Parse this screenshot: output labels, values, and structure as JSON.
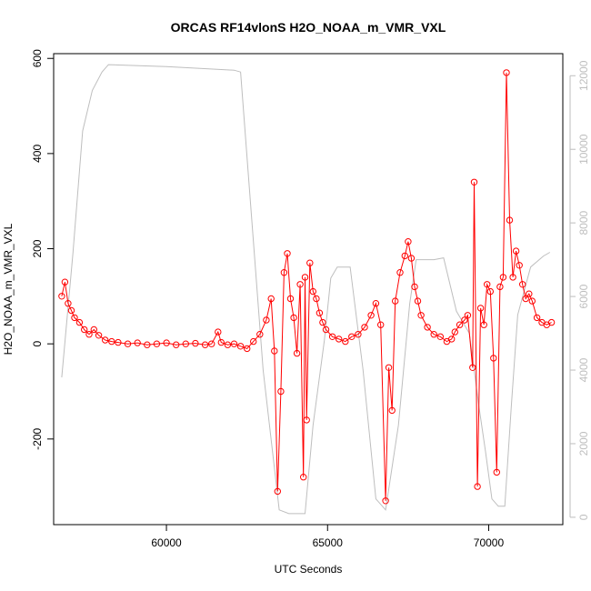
{
  "chart_data": {
    "type": "line",
    "title": "ORCAS RF14vlonS H2O_NOAA_m_VMR_VXL",
    "xlabel": "UTC Seconds",
    "ylabel": "H2O_NOAA_m_VMR_VXL",
    "xlim": [
      56500,
      72300
    ],
    "ylim": [
      -380,
      610
    ],
    "y2lim": [
      -200,
      12600
    ],
    "x_ticks": [
      60000,
      65000,
      70000
    ],
    "y_ticks": [
      -200,
      0,
      200,
      400,
      600
    ],
    "y2_ticks": [
      0,
      2000,
      4000,
      6000,
      8000,
      10000,
      12000
    ],
    "colors": {
      "primary": "#ff0000",
      "secondary": "#bebebe",
      "axis": "#000000"
    },
    "grid": false,
    "series": [
      {
        "axis": "left",
        "style": "line+open-circles",
        "color": "#ff0000",
        "points": [
          [
            56750,
            100
          ],
          [
            56850,
            130
          ],
          [
            56950,
            85
          ],
          [
            57050,
            70
          ],
          [
            57150,
            55
          ],
          [
            57300,
            45
          ],
          [
            57450,
            30
          ],
          [
            57600,
            20
          ],
          [
            57750,
            30
          ],
          [
            57900,
            18
          ],
          [
            58100,
            8
          ],
          [
            58300,
            5
          ],
          [
            58500,
            3
          ],
          [
            58800,
            0
          ],
          [
            59100,
            2
          ],
          [
            59400,
            -2
          ],
          [
            59700,
            0
          ],
          [
            60000,
            2
          ],
          [
            60300,
            -2
          ],
          [
            60600,
            0
          ],
          [
            60900,
            1
          ],
          [
            61200,
            -2
          ],
          [
            61400,
            0
          ],
          [
            61600,
            25
          ],
          [
            61700,
            3
          ],
          [
            61900,
            -2
          ],
          [
            62100,
            0
          ],
          [
            62300,
            -5
          ],
          [
            62500,
            -10
          ],
          [
            62700,
            5
          ],
          [
            62900,
            20
          ],
          [
            63100,
            50
          ],
          [
            63250,
            95
          ],
          [
            63350,
            -15
          ],
          [
            63450,
            -310
          ],
          [
            63550,
            -100
          ],
          [
            63650,
            150
          ],
          [
            63750,
            190
          ],
          [
            63850,
            95
          ],
          [
            63950,
            55
          ],
          [
            64050,
            -20
          ],
          [
            64150,
            125
          ],
          [
            64250,
            -280
          ],
          [
            64300,
            140
          ],
          [
            64350,
            -160
          ],
          [
            64450,
            170
          ],
          [
            64550,
            110
          ],
          [
            64650,
            95
          ],
          [
            64750,
            65
          ],
          [
            64850,
            45
          ],
          [
            64950,
            30
          ],
          [
            65150,
            15
          ],
          [
            65350,
            10
          ],
          [
            65550,
            5
          ],
          [
            65750,
            15
          ],
          [
            65950,
            20
          ],
          [
            66150,
            35
          ],
          [
            66350,
            60
          ],
          [
            66500,
            85
          ],
          [
            66650,
            40
          ],
          [
            66800,
            -330
          ],
          [
            66900,
            -50
          ],
          [
            67000,
            -140
          ],
          [
            67100,
            90
          ],
          [
            67250,
            150
          ],
          [
            67400,
            185
          ],
          [
            67500,
            215
          ],
          [
            67600,
            180
          ],
          [
            67700,
            120
          ],
          [
            67800,
            90
          ],
          [
            67900,
            60
          ],
          [
            68100,
            35
          ],
          [
            68300,
            20
          ],
          [
            68500,
            15
          ],
          [
            68700,
            5
          ],
          [
            68850,
            10
          ],
          [
            68950,
            25
          ],
          [
            69100,
            40
          ],
          [
            69250,
            50
          ],
          [
            69350,
            60
          ],
          [
            69500,
            -50
          ],
          [
            69550,
            340
          ],
          [
            69650,
            -300
          ],
          [
            69750,
            75
          ],
          [
            69850,
            40
          ],
          [
            69950,
            125
          ],
          [
            70050,
            110
          ],
          [
            70150,
            -30
          ],
          [
            70250,
            -270
          ],
          [
            70350,
            120
          ],
          [
            70450,
            140
          ],
          [
            70550,
            570
          ],
          [
            70650,
            260
          ],
          [
            70750,
            140
          ],
          [
            70850,
            195
          ],
          [
            70950,
            165
          ],
          [
            71050,
            125
          ],
          [
            71150,
            95
          ],
          [
            71250,
            105
          ],
          [
            71350,
            90
          ],
          [
            71500,
            55
          ],
          [
            71650,
            45
          ],
          [
            71800,
            40
          ],
          [
            71950,
            45
          ]
        ]
      },
      {
        "axis": "right",
        "style": "line",
        "color": "#bebebe",
        "points": [
          [
            56750,
            3800
          ],
          [
            57100,
            7200
          ],
          [
            57400,
            10500
          ],
          [
            57700,
            11600
          ],
          [
            58000,
            12100
          ],
          [
            58200,
            12300
          ],
          [
            60000,
            12250
          ],
          [
            62100,
            12150
          ],
          [
            62300,
            12100
          ],
          [
            63000,
            4000
          ],
          [
            63500,
            200
          ],
          [
            63800,
            100
          ],
          [
            64300,
            100
          ],
          [
            64550,
            2500
          ],
          [
            64900,
            4800
          ],
          [
            65100,
            6500
          ],
          [
            65300,
            6800
          ],
          [
            65700,
            6800
          ],
          [
            66100,
            4000
          ],
          [
            66500,
            500
          ],
          [
            66800,
            200
          ],
          [
            67200,
            2500
          ],
          [
            67550,
            5800
          ],
          [
            67750,
            7000
          ],
          [
            68300,
            7000
          ],
          [
            68600,
            7050
          ],
          [
            69000,
            5600
          ],
          [
            69400,
            5000
          ],
          [
            69700,
            3000
          ],
          [
            69900,
            1800
          ],
          [
            70100,
            500
          ],
          [
            70300,
            300
          ],
          [
            70500,
            300
          ],
          [
            70700,
            3000
          ],
          [
            70900,
            5500
          ],
          [
            71300,
            6800
          ],
          [
            71700,
            7100
          ],
          [
            71900,
            7200
          ]
        ]
      }
    ]
  }
}
